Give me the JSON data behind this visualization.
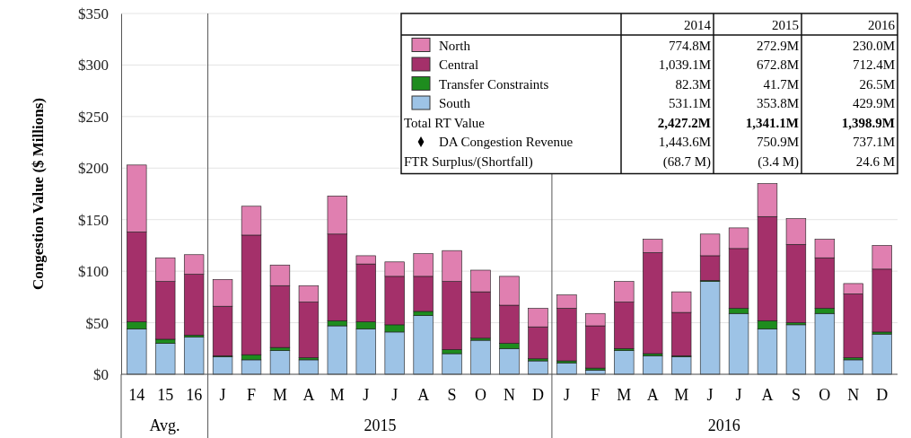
{
  "chart_data": {
    "type": "bar",
    "stacked": true,
    "ylabel": "Congestion Value ($ Millions)",
    "categories": [
      "14",
      "15",
      "16",
      "J",
      "F",
      "M",
      "A",
      "M",
      "J",
      "J",
      "A",
      "S",
      "O",
      "N",
      "D",
      "J",
      "F",
      "M",
      "A",
      "M",
      "J",
      "J",
      "A",
      "S",
      "O",
      "N",
      "D"
    ],
    "series": [
      {
        "name": "South",
        "color": "#9dc3e6",
        "values": [
          44,
          30,
          36,
          17,
          14,
          23,
          14,
          47,
          44,
          41,
          57,
          20,
          33,
          25,
          13,
          11,
          4,
          23,
          18,
          17,
          90,
          59,
          44,
          48,
          59,
          14,
          39
        ]
      },
      {
        "name": "Transfer Constraints",
        "color": "#1e8c1e",
        "values": [
          7,
          4,
          2,
          1,
          5,
          3,
          2,
          5,
          7,
          7,
          4,
          4,
          2,
          5,
          2,
          2,
          2,
          2,
          2,
          1,
          1,
          5,
          8,
          2,
          5,
          2,
          2
        ]
      },
      {
        "name": "Central",
        "color": "#a4306a",
        "values": [
          87,
          56,
          59,
          48,
          116,
          60,
          54,
          84,
          56,
          47,
          34,
          66,
          45,
          37,
          31,
          51,
          41,
          45,
          98,
          42,
          24,
          58,
          101,
          76,
          49,
          62,
          61
        ]
      },
      {
        "name": "North",
        "color": "#e07fb0",
        "values": [
          65,
          23,
          19,
          26,
          28,
          20,
          16,
          37,
          8,
          14,
          22,
          30,
          21,
          28,
          18,
          13,
          12,
          20,
          13,
          20,
          21,
          20,
          32,
          25,
          18,
          10,
          23
        ]
      }
    ],
    "ylim": [
      0,
      350
    ],
    "yticks": [
      {
        "value": 0,
        "label": "$0"
      },
      {
        "value": 50,
        "label": "$50"
      },
      {
        "value": 100,
        "label": "$100"
      },
      {
        "value": 150,
        "label": "$150"
      },
      {
        "value": 200,
        "label": "$200"
      },
      {
        "value": 250,
        "label": "$250"
      },
      {
        "value": 300,
        "label": "$300"
      },
      {
        "value": 350,
        "label": "$350"
      }
    ],
    "grid": "y",
    "legend": "top right",
    "annotations": [
      "2014",
      "2015",
      "2016",
      "774.8M",
      "272.9M",
      "230.0M",
      "1,039.1M",
      "672.8M",
      "712.4M",
      "82.3M",
      "41.7M",
      "26.5M",
      "531.1M",
      "353.8M",
      "429.9M",
      "Total RT Value",
      "2,427.2M",
      "1,341.1M",
      "1,398.9M",
      "DA Congestion Revenue",
      "1,443.6M",
      "750.9M",
      "737.1M",
      "FTR Surplus/(Shortfall)",
      "(68.7 M)",
      "(3.4 M)",
      "24.6 M",
      "Avg.",
      "2015",
      "2016"
    ]
  }
}
